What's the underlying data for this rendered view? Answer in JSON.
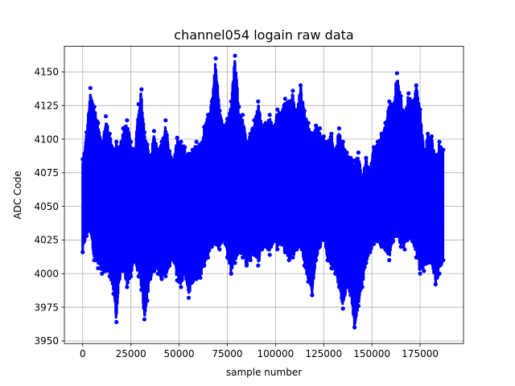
{
  "chart_data": {
    "type": "scatter",
    "title": "channel054 logain raw data",
    "xlabel": "sample number",
    "ylabel": "ADC Code",
    "xlim": [
      -9500,
      197500
    ],
    "ylim": [
      3948,
      4169
    ],
    "xticks": [
      0,
      25000,
      50000,
      75000,
      100000,
      125000,
      150000,
      175000
    ],
    "yticks": [
      3950,
      3975,
      4000,
      4025,
      4050,
      4075,
      4100,
      4125,
      4150
    ],
    "grid": true,
    "color": "#0000ff",
    "series": [
      {
        "x_start": 0,
        "x_end": 187000,
        "envelope_x": [
          0,
          2000,
          4000,
          6000,
          8000,
          10000,
          12000,
          14000,
          16000,
          17500,
          19000,
          21000,
          23000,
          25000,
          27000,
          29000,
          30500,
          32000,
          33500,
          35000,
          37000,
          39000,
          41000,
          43000,
          45000,
          47000,
          49000,
          51000,
          53000,
          55000,
          57000,
          59000,
          61000,
          63000,
          65000,
          67000,
          69000,
          71000,
          73000,
          75000,
          77000,
          79000,
          81000,
          83000,
          85000,
          87000,
          89000,
          91000,
          93000,
          95000,
          97000,
          99000,
          101000,
          103000,
          105000,
          107000,
          109000,
          111000,
          113000,
          115000,
          117000,
          119000,
          121000,
          123000,
          125000,
          127000,
          129000,
          131000,
          133000,
          135000,
          137000,
          139000,
          141000,
          143000,
          145000,
          147000,
          149000,
          151000,
          153000,
          155000,
          157000,
          159000,
          161000,
          163000,
          165000,
          167000,
          169000,
          171000,
          173000,
          175000,
          177000,
          179000,
          181000,
          183000,
          185000,
          187000
        ],
        "envelope_high": [
          4085,
          4105,
          4138,
          4124,
          4112,
          4095,
          4117,
          4104,
          4092,
          4098,
          4094,
          4108,
          4114,
          4098,
          4090,
          4126,
          4137,
          4105,
          4096,
          4084,
          4106,
          4092,
          4098,
          4114,
          4091,
          4084,
          4101,
          4098,
          4094,
          4089,
          4092,
          4098,
          4096,
          4109,
          4118,
          4128,
          4160,
          4121,
          4110,
          4115,
          4128,
          4162,
          4124,
          4118,
          4098,
          4104,
          4114,
          4128,
          4110,
          4112,
          4118,
          4109,
          4122,
          4119,
          4130,
          4128,
          4136,
          4118,
          4140,
          4121,
          4112,
          4104,
          4110,
          4108,
          4102,
          4098,
          4104,
          4092,
          4108,
          4098,
          4090,
          4086,
          4084,
          4090,
          4072,
          4086,
          4078,
          4094,
          4098,
          4104,
          4112,
          4128,
          4125,
          4149,
          4132,
          4118,
          4134,
          4128,
          4140,
          4122,
          4092,
          4104,
          4102,
          4086,
          4098,
          4092
        ],
        "envelope_low": [
          4016,
          4028,
          4032,
          4010,
          4004,
          4000,
          4002,
          3998,
          3985,
          3964,
          3996,
          4002,
          3990,
          3998,
          4010,
          3998,
          3988,
          3966,
          3980,
          3996,
          4002,
          4000,
          3996,
          3998,
          4006,
          4010,
          3995,
          3990,
          4000,
          3982,
          3994,
          3996,
          3997,
          4006,
          4012,
          4020,
          4022,
          4018,
          4026,
          4012,
          4000,
          4008,
          4016,
          4012,
          4006,
          4010,
          4014,
          4006,
          4018,
          4020,
          4014,
          4024,
          4018,
          4022,
          4016,
          4010,
          4012,
          4018,
          4020,
          4006,
          3994,
          3984,
          4010,
          4020,
          4025,
          4010,
          4004,
          4000,
          3990,
          3974,
          3990,
          3984,
          3960,
          3976,
          3990,
          4008,
          4016,
          4022,
          4024,
          4020,
          4018,
          4010,
          4024,
          4028,
          4020,
          4018,
          4026,
          4024,
          4012,
          4000,
          4002,
          4008,
          4008,
          3992,
          4000,
          4010
        ]
      }
    ]
  }
}
